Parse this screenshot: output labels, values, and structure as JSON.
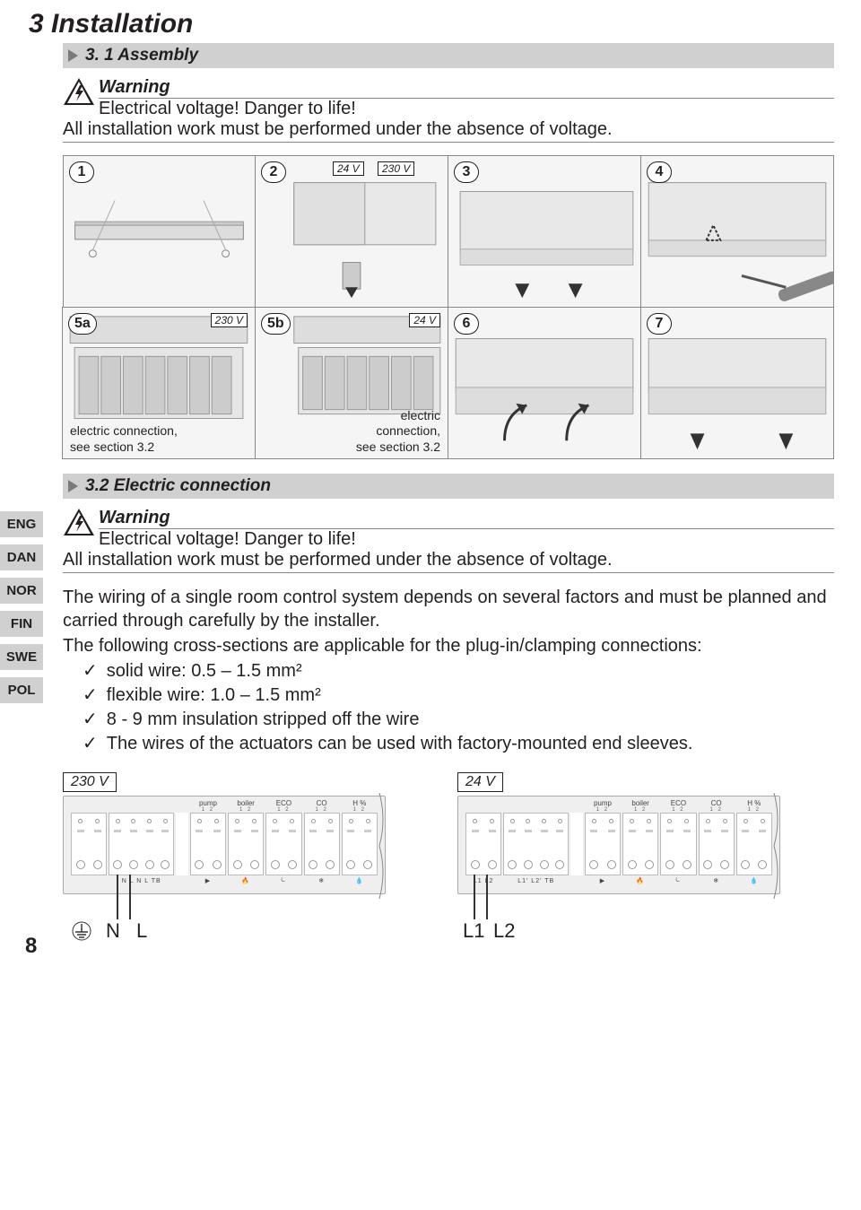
{
  "page_number": "8",
  "chapter_title": "3 Installation",
  "section_3_1": "3. 1 Assembly",
  "section_3_2": "3.2 Electric connection",
  "warning": {
    "title": "Warning",
    "line1": "Electrical voltage! Danger to life!",
    "line2": "All installation work must be performed under the absence of voltage."
  },
  "languages": [
    "ENG",
    "DAN",
    "NOR",
    "FIN",
    "SWE",
    "POL"
  ],
  "steps": {
    "row1": [
      {
        "n": "1"
      },
      {
        "n": "2",
        "tag_a": "24 V",
        "tag_b": "230 V"
      },
      {
        "n": "3"
      },
      {
        "n": "4"
      }
    ],
    "row2": [
      {
        "n": "5a",
        "tag": "230 V",
        "caption": "electric connection,\nsee section 3.2",
        "cap_align": "right"
      },
      {
        "n": "5b",
        "tag": "24 V",
        "caption": "electric\nconnection,\nsee section 3.2",
        "cap_align": "right"
      },
      {
        "n": "6"
      },
      {
        "n": "7"
      }
    ]
  },
  "body": {
    "p1": "The wiring of a single room control system depends on several factors and must be planned and carried through carefully by the installer.",
    "p2": "The following cross-sections are applicable for the plug-in/clamping connections:",
    "checks": [
      "solid wire: 0.5 – 1.5 mm²",
      "flexible wire: 1.0 – 1.5 mm²",
      "8 - 9 mm insulation stripped off the wire",
      "The wires of the actuators can be used with factory-mounted end sleeves."
    ]
  },
  "wiring": {
    "left": {
      "vtag": "230 V",
      "top_labels": [
        "",
        "",
        "pump",
        "boiler",
        "ECO",
        "CO",
        "H %"
      ],
      "bottom_labels_a": "N  L  N  L  TB",
      "lead1": "N",
      "lead2": "L"
    },
    "right": {
      "vtag": "24 V",
      "top_labels": [
        "",
        "",
        "pump",
        "boiler",
        "ECO",
        "CO",
        "H %"
      ],
      "bottom_labels_a": "L1 L2",
      "bottom_labels_b": "L1' L2'    TB",
      "lead1": "L1",
      "lead2": "L2"
    }
  },
  "colors": {
    "text": "#231f20",
    "bar_bg": "#d0d0d0",
    "tri": "#7a7a7a",
    "rule": "#888888",
    "panel_bg": "#f5f5f5",
    "board_bg": "#efefef"
  }
}
